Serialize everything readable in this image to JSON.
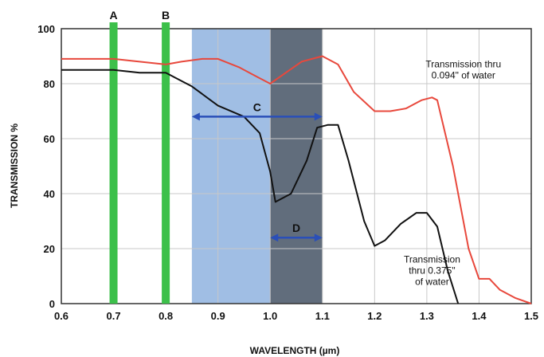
{
  "chart_data": {
    "type": "line",
    "title": "",
    "xlabel": "WAVELENGTH (µm)",
    "ylabel": "TRANSMISSION %",
    "xlim": [
      0.6,
      1.5
    ],
    "ylim": [
      0,
      100
    ],
    "grid": true,
    "x_ticks": [
      "0.6",
      "0.7",
      "0.8",
      "0.9",
      "1.0",
      "1.1",
      "1.2",
      "1.3",
      "1.4",
      "1.5"
    ],
    "y_ticks": [
      "0",
      "20",
      "40",
      "60",
      "80",
      "100"
    ],
    "colors": {
      "series_red": "#e8483c",
      "series_black": "#111111",
      "band_green": "#3cc04a",
      "region_light_blue": "#8fb3df",
      "region_dark": "#5a6470",
      "arrow_blue": "#2a4fb8",
      "grid": "#c8c8c8"
    },
    "series": [
      {
        "name": "Transmission thru 0.094\" of water",
        "color": "#e8483c",
        "x": [
          0.6,
          0.65,
          0.7,
          0.75,
          0.8,
          0.83,
          0.87,
          0.9,
          0.94,
          0.97,
          1.0,
          1.03,
          1.06,
          1.08,
          1.1,
          1.13,
          1.16,
          1.2,
          1.23,
          1.26,
          1.29,
          1.31,
          1.32,
          1.35,
          1.38,
          1.4,
          1.42,
          1.44,
          1.47,
          1.5
        ],
        "values": [
          89,
          89,
          89,
          88,
          87,
          88,
          89,
          89,
          86,
          83,
          80,
          84,
          88,
          89,
          90,
          87,
          77,
          70,
          70,
          71,
          74,
          75,
          74,
          50,
          20,
          9,
          9,
          5,
          2,
          0
        ]
      },
      {
        "name": "Transmission thru 0.375\" of water",
        "color": "#111111",
        "x": [
          0.6,
          0.7,
          0.75,
          0.8,
          0.82,
          0.85,
          0.9,
          0.95,
          0.98,
          1.0,
          1.01,
          1.04,
          1.07,
          1.09,
          1.11,
          1.13,
          1.15,
          1.18,
          1.2,
          1.22,
          1.25,
          1.28,
          1.3,
          1.32,
          1.34,
          1.36
        ],
        "values": [
          85,
          85,
          84,
          84,
          82,
          79,
          72,
          68,
          62,
          48,
          37,
          40,
          52,
          64,
          65,
          65,
          52,
          30,
          21,
          23,
          29,
          33,
          33,
          28,
          12,
          0
        ]
      }
    ],
    "bands": [
      {
        "label": "A",
        "x": 0.7,
        "color": "#3cc04a"
      },
      {
        "label": "B",
        "x": 0.8,
        "color": "#3cc04a"
      }
    ],
    "regions": [
      {
        "from": 0.85,
        "to": 1.1,
        "color": "#8fb3df"
      },
      {
        "from": 1.0,
        "to": 1.1,
        "color": "#5a6470"
      }
    ],
    "arrows": [
      {
        "label": "C",
        "from": 0.85,
        "to": 1.1,
        "y": 68
      },
      {
        "label": "D",
        "from": 1.0,
        "to": 1.1,
        "y": 24
      }
    ],
    "annotations": [
      {
        "lines": [
          "Transmission thru",
          "0.094\" of water"
        ],
        "x": 1.37,
        "y": 86
      },
      {
        "lines": [
          "Transmission",
          "thru 0.375\"",
          "of water"
        ],
        "x": 1.31,
        "y": 15
      }
    ]
  }
}
